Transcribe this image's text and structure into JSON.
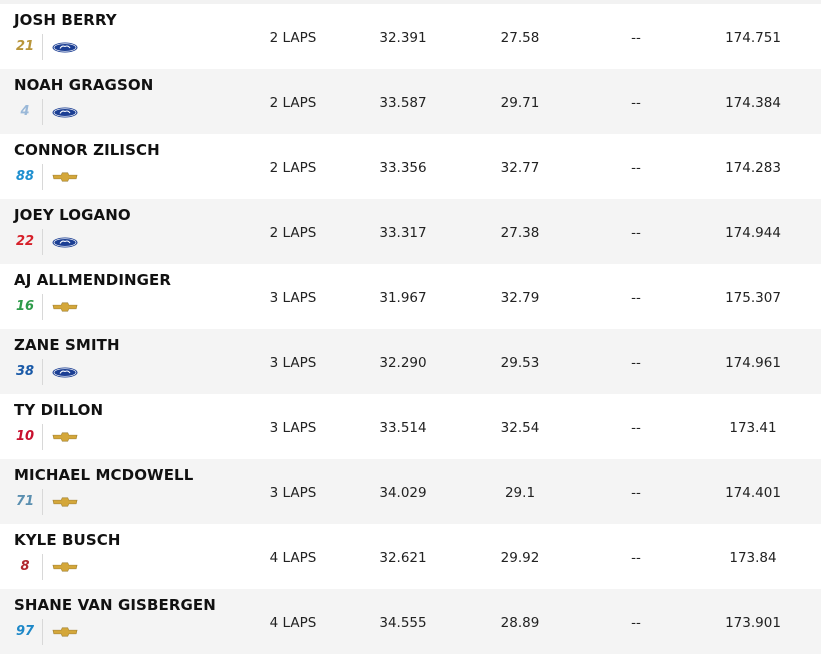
{
  "colors": {
    "ford": "#1c3f94",
    "chevrolet": "#d4a73a",
    "row_alt": "#f4f4f4"
  },
  "rows": [
    {
      "driver": "JOSH BERRY",
      "car_number": "21",
      "number_color": "#b8953a",
      "make": "ford-logo-icon",
      "laps": "2 LAPS",
      "time": "32.391",
      "gap": "27.58",
      "diff": "--",
      "speed": "174.751"
    },
    {
      "driver": "NOAH GRAGSON",
      "car_number": "4",
      "number_color": "#9ab8d8",
      "make": "ford-logo-icon",
      "laps": "2 LAPS",
      "time": "33.587",
      "gap": "29.71",
      "diff": "--",
      "speed": "174.384"
    },
    {
      "driver": "CONNOR ZILISCH",
      "car_number": "88",
      "number_color": "#1e8fcf",
      "make": "chevrolet-logo-icon",
      "laps": "2 LAPS",
      "time": "33.356",
      "gap": "32.77",
      "diff": "--",
      "speed": "174.283"
    },
    {
      "driver": "JOEY LOGANO",
      "car_number": "22",
      "number_color": "#d6202a",
      "make": "ford-logo-icon",
      "laps": "2 LAPS",
      "time": "33.317",
      "gap": "27.38",
      "diff": "--",
      "speed": "174.944"
    },
    {
      "driver": "AJ ALLMENDINGER",
      "car_number": "16",
      "number_color": "#2e9b4a",
      "make": "chevrolet-logo-icon",
      "laps": "3 LAPS",
      "time": "31.967",
      "gap": "32.79",
      "diff": "--",
      "speed": "175.307"
    },
    {
      "driver": "ZANE SMITH",
      "car_number": "38",
      "number_color": "#1a5aa8",
      "make": "ford-logo-icon",
      "laps": "3 LAPS",
      "time": "32.290",
      "gap": "29.53",
      "diff": "--",
      "speed": "174.961"
    },
    {
      "driver": "TY DILLON",
      "car_number": "10",
      "number_color": "#c8102e",
      "make": "chevrolet-logo-icon",
      "laps": "3 LAPS",
      "time": "33.514",
      "gap": "32.54",
      "diff": "--",
      "speed": "173.41"
    },
    {
      "driver": "MICHAEL MCDOWELL",
      "car_number": "71",
      "number_color": "#5a8fb0",
      "make": "chevrolet-logo-icon",
      "laps": "3 LAPS",
      "time": "34.029",
      "gap": "29.1",
      "diff": "--",
      "speed": "174.401"
    },
    {
      "driver": "KYLE BUSCH",
      "car_number": "8",
      "number_color": "#b0282e",
      "make": "chevrolet-logo-icon",
      "laps": "4 LAPS",
      "time": "32.621",
      "gap": "29.92",
      "diff": "--",
      "speed": "173.84"
    },
    {
      "driver": "SHANE VAN GISBERGEN",
      "car_number": "97",
      "number_color": "#1e88c8",
      "make": "chevrolet-logo-icon",
      "laps": "4 LAPS",
      "time": "34.555",
      "gap": "28.89",
      "diff": "--",
      "speed": "173.901"
    }
  ]
}
